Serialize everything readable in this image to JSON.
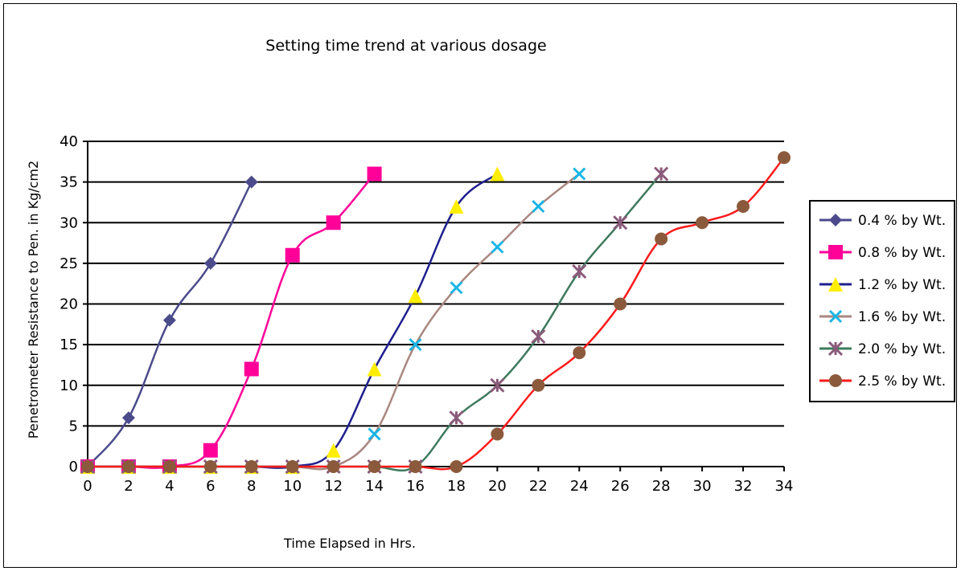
{
  "chart_data": {
    "type": "line",
    "title": "Setting time trend at various dosage",
    "xlabel": "Time Elapsed in Hrs.",
    "ylabel": "Penetrometer Resistance to Pen. in Kg/cm2",
    "xlim": [
      0,
      34
    ],
    "ylim": [
      0,
      40
    ],
    "xticks": [
      0,
      2,
      4,
      6,
      8,
      10,
      12,
      14,
      16,
      18,
      20,
      22,
      24,
      26,
      28,
      30,
      32,
      34
    ],
    "yticks": [
      0,
      5,
      10,
      15,
      20,
      25,
      30,
      35,
      40
    ],
    "xtick_labels": [
      "0",
      "2",
      "4",
      "6",
      "8",
      "10",
      "12",
      "14",
      "16",
      "18",
      "20",
      "22",
      "24",
      "26",
      "28",
      "30",
      "32",
      "34"
    ],
    "ytick_labels": [
      "0",
      "5",
      "10",
      "15",
      "20",
      "25",
      "30",
      "35",
      "40"
    ],
    "grid": "horizontal",
    "legend_position": "right",
    "series": [
      {
        "name": "0.4 % by Wt.",
        "color": "#4B4B8C",
        "marker": "diamond",
        "x": [
          0,
          2,
          4,
          6,
          8
        ],
        "y": [
          0,
          6,
          18,
          25,
          35
        ]
      },
      {
        "name": "0.8 % by Wt.",
        "color": "#FF0099",
        "marker": "square",
        "x": [
          0,
          2,
          4,
          6,
          8,
          10,
          12,
          14
        ],
        "y": [
          0,
          0,
          0,
          2,
          12,
          26,
          30,
          36
        ]
      },
      {
        "name": "1.2 % by Wt.",
        "color": "#1F1F8F",
        "marker": "triangle",
        "x": [
          0,
          2,
          4,
          6,
          8,
          10,
          12,
          14,
          16,
          18,
          20
        ],
        "y": [
          0,
          0,
          0,
          0,
          0,
          0,
          2,
          12,
          21,
          32,
          36
        ]
      },
      {
        "name": "1.6 % by Wt.",
        "color": "#A98780",
        "marker": "x",
        "x": [
          0,
          2,
          4,
          6,
          8,
          10,
          12,
          14,
          16,
          18,
          20,
          22,
          24
        ],
        "y": [
          0,
          0,
          0,
          0,
          0,
          0,
          0,
          4,
          15,
          22,
          27,
          32,
          36
        ]
      },
      {
        "name": "2.0 % by Wt.",
        "color": "#3E7A5E",
        "marker": "star",
        "x": [
          0,
          2,
          4,
          6,
          8,
          10,
          12,
          14,
          16,
          18,
          20,
          22,
          24,
          26,
          28
        ],
        "y": [
          0,
          0,
          0,
          0,
          0,
          0,
          0,
          0,
          0,
          6,
          10,
          16,
          24,
          30,
          36
        ]
      },
      {
        "name": "2.5 % by Wt.",
        "color": "#FF1A1A",
        "marker": "circle",
        "x": [
          0,
          2,
          4,
          6,
          8,
          10,
          12,
          14,
          16,
          18,
          20,
          22,
          24,
          26,
          28,
          30,
          32,
          34
        ],
        "y": [
          0,
          0,
          0,
          0,
          0,
          0,
          0,
          0,
          0,
          0,
          4,
          10,
          14,
          20,
          28,
          30,
          32,
          38
        ]
      }
    ]
  }
}
